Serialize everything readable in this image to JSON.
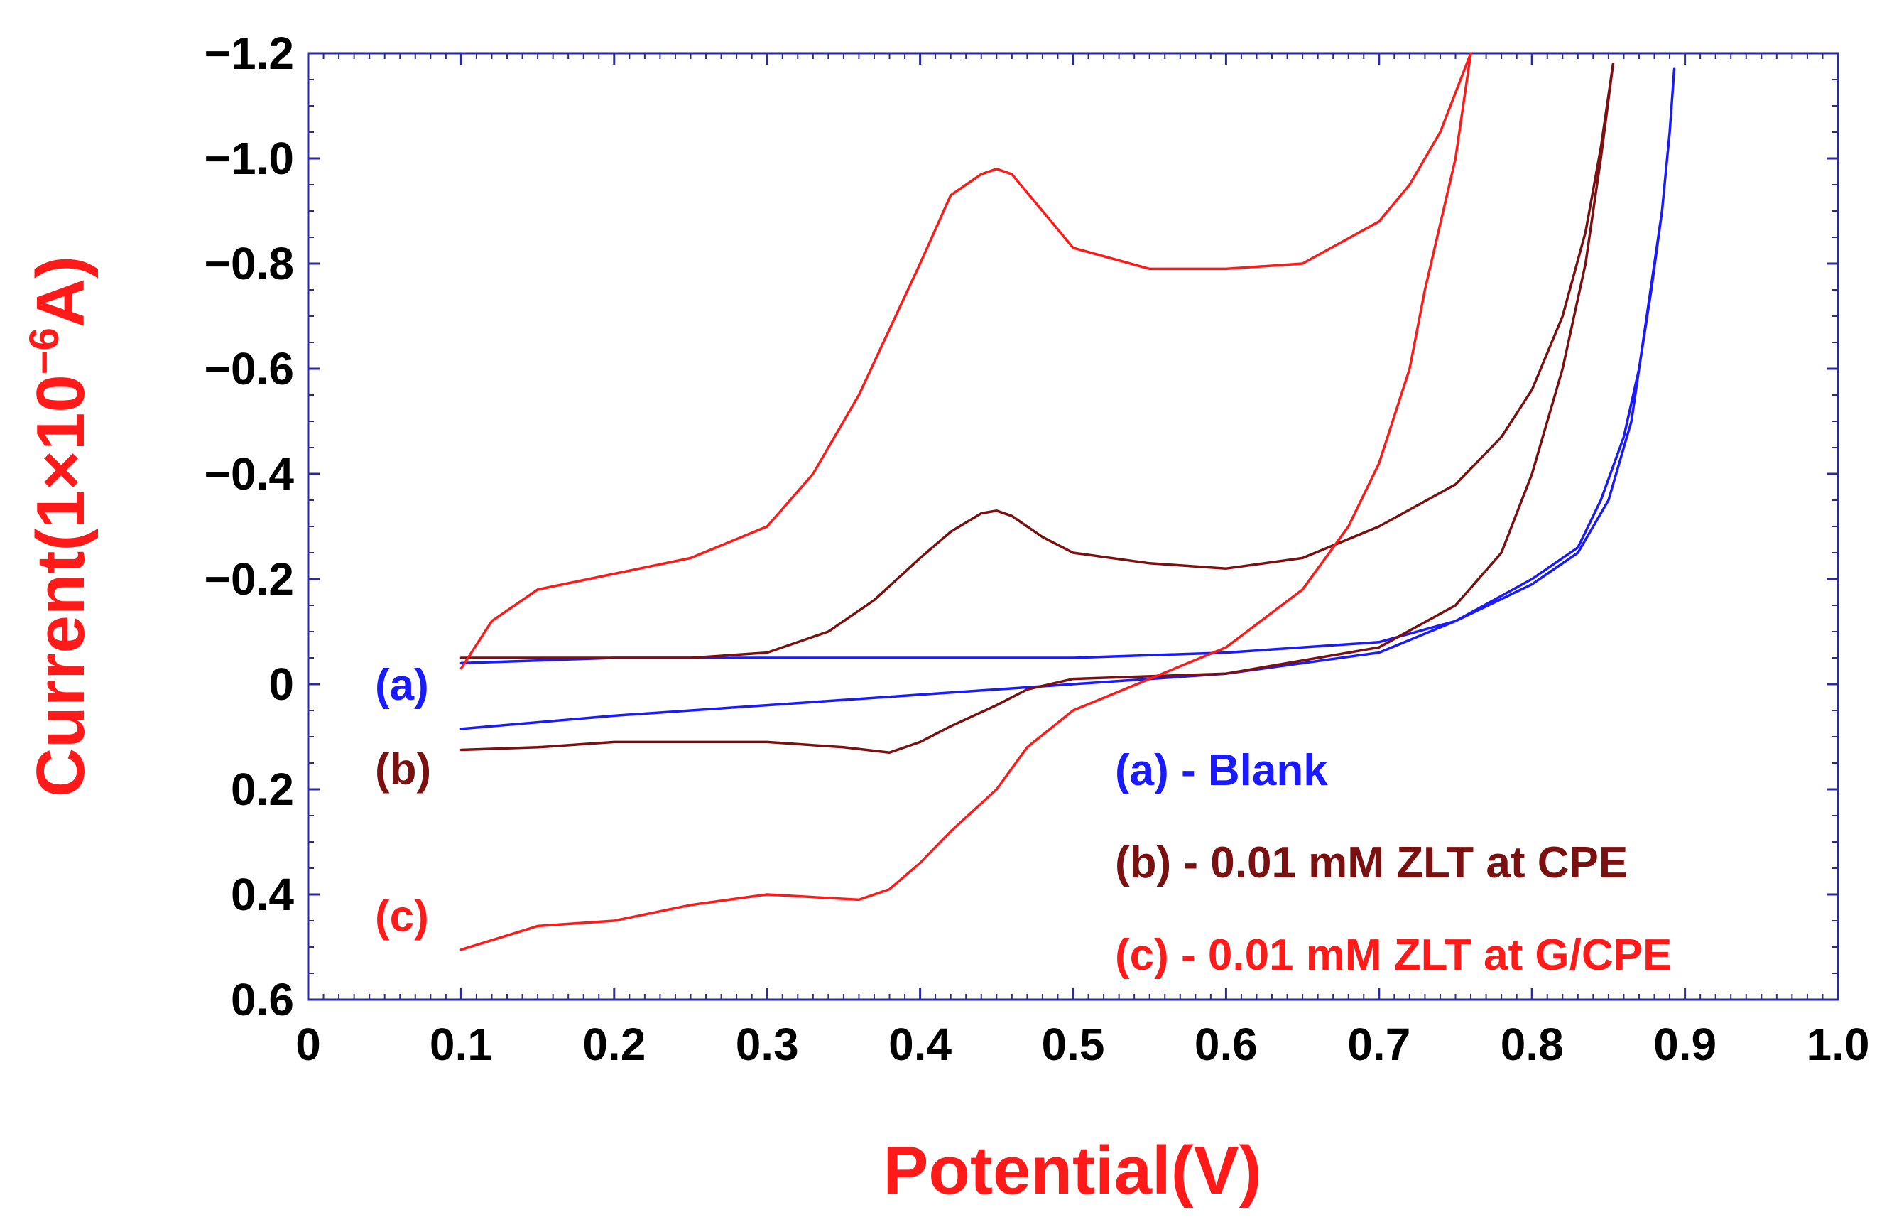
{
  "chart_data": {
    "type": "line",
    "title": "",
    "xlabel": "Potential(V)",
    "ylabel_prefix": "Current(1×10",
    "ylabel_exp": "−6",
    "ylabel_suffix": "A)",
    "xlim": [
      0,
      1.0
    ],
    "ylim": [
      0.6,
      -1.2
    ],
    "x_ticks": [
      0,
      0.1,
      0.2,
      0.3,
      0.4,
      0.5,
      0.6,
      0.7,
      0.8,
      0.9,
      1.0
    ],
    "x_tick_labels": [
      "0",
      "0.1",
      "0.2",
      "0.3",
      "0.4",
      "0.5",
      "0.6",
      "0.7",
      "0.8",
      "0.9",
      "1.0"
    ],
    "y_ticks": [
      -1.2,
      -1.0,
      -0.8,
      -0.6,
      -0.4,
      -0.2,
      0,
      0.2,
      0.4,
      0.6
    ],
    "y_tick_labels": [
      "−1.2",
      "−1.0",
      "−0.8",
      "−0.6",
      "−0.4",
      "−0.2",
      "0",
      "0.2",
      "0.4",
      "0.6"
    ],
    "grid": false,
    "legend_position": "bottom-right",
    "series": [
      {
        "name": "(a) - Blank",
        "label": "(a)",
        "color": "#1a1aff",
        "x": [
          0.1,
          0.2,
          0.3,
          0.4,
          0.5,
          0.6,
          0.7,
          0.75,
          0.8,
          0.83,
          0.85,
          0.865,
          0.875,
          0.885,
          0.89,
          0.893,
          0.893,
          0.89,
          0.885,
          0.878,
          0.87,
          0.86,
          0.845,
          0.83,
          0.8,
          0.75,
          0.7,
          0.6,
          0.5,
          0.4,
          0.3,
          0.2,
          0.1
        ],
        "y": [
          -0.04,
          -0.05,
          -0.05,
          -0.05,
          -0.05,
          -0.06,
          -0.08,
          -0.12,
          -0.19,
          -0.25,
          -0.35,
          -0.5,
          -0.7,
          -0.9,
          -1.05,
          -1.17,
          -1.17,
          -1.05,
          -0.9,
          -0.75,
          -0.6,
          -0.47,
          -0.35,
          -0.26,
          -0.2,
          -0.12,
          -0.06,
          -0.02,
          0.0,
          0.02,
          0.04,
          0.06,
          0.085
        ]
      },
      {
        "name": "(b) - 0.01 mM ZLT at CPE",
        "label": "(b)",
        "color": "#7a1010",
        "x": [
          0.1,
          0.15,
          0.2,
          0.25,
          0.3,
          0.34,
          0.37,
          0.4,
          0.42,
          0.44,
          0.45,
          0.46,
          0.48,
          0.5,
          0.55,
          0.6,
          0.65,
          0.7,
          0.75,
          0.78,
          0.8,
          0.82,
          0.835,
          0.845,
          0.85,
          0.853,
          0.853,
          0.845,
          0.835,
          0.82,
          0.8,
          0.78,
          0.75,
          0.7,
          0.6,
          0.55,
          0.5,
          0.47,
          0.45,
          0.42,
          0.4,
          0.38,
          0.35,
          0.3,
          0.2,
          0.15,
          0.1
        ],
        "y": [
          -0.05,
          -0.05,
          -0.05,
          -0.05,
          -0.06,
          -0.1,
          -0.16,
          -0.24,
          -0.29,
          -0.325,
          -0.33,
          -0.32,
          -0.28,
          -0.25,
          -0.23,
          -0.22,
          -0.24,
          -0.3,
          -0.38,
          -0.47,
          -0.56,
          -0.7,
          -0.86,
          -1.02,
          -1.12,
          -1.18,
          -1.18,
          -1.0,
          -0.8,
          -0.6,
          -0.4,
          -0.25,
          -0.15,
          -0.07,
          -0.02,
          -0.015,
          -0.01,
          0.01,
          0.04,
          0.08,
          0.11,
          0.13,
          0.12,
          0.11,
          0.11,
          0.12,
          0.125
        ]
      },
      {
        "name": "(c) - 0.01 mM ZLT at G/CPE",
        "label": "(c)",
        "color": "#ff1a1a",
        "x": [
          0.1,
          0.12,
          0.15,
          0.2,
          0.25,
          0.3,
          0.33,
          0.36,
          0.4,
          0.42,
          0.44,
          0.45,
          0.46,
          0.48,
          0.5,
          0.55,
          0.6,
          0.65,
          0.7,
          0.72,
          0.74,
          0.76,
          0.76,
          0.75,
          0.73,
          0.72,
          0.7,
          0.68,
          0.65,
          0.6,
          0.55,
          0.5,
          0.47,
          0.45,
          0.42,
          0.4,
          0.38,
          0.36,
          0.3,
          0.25,
          0.2,
          0.15,
          0.1
        ],
        "y": [
          -0.03,
          -0.12,
          -0.18,
          -0.21,
          -0.24,
          -0.3,
          -0.4,
          -0.55,
          -0.8,
          -0.93,
          -0.97,
          -0.98,
          -0.97,
          -0.9,
          -0.83,
          -0.79,
          -0.79,
          -0.8,
          -0.88,
          -0.95,
          -1.05,
          -1.2,
          -1.2,
          -1.0,
          -0.75,
          -0.6,
          -0.42,
          -0.3,
          -0.18,
          -0.07,
          -0.01,
          0.05,
          0.12,
          0.2,
          0.28,
          0.34,
          0.39,
          0.41,
          0.4,
          0.42,
          0.45,
          0.46,
          0.505
        ]
      }
    ],
    "curve_labels": [
      {
        "text": "(a)",
        "color": "#1a1aff",
        "y": 0.0
      },
      {
        "text": "(b)",
        "color": "#7a1010",
        "y": 0.16
      },
      {
        "text": "(c)",
        "color": "#ff1a1a",
        "y": 0.44
      }
    ]
  }
}
